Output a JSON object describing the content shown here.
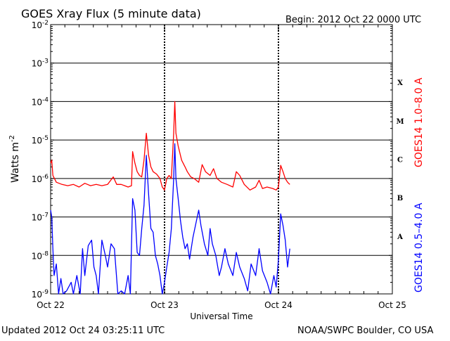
{
  "header": {
    "title": "GOES Xray Flux (5 minute data)",
    "begin": "Begin:  2012 Oct 22 0000 UTC"
  },
  "footer": {
    "updated": "Updated 2012 Oct 24 03:25:11 UTC",
    "credit": "NOAA/SWPC Boulder, CO USA"
  },
  "colors": {
    "long_channel": "#ff0000",
    "short_channel": "#0000ff",
    "axes": "#000000"
  },
  "chart_data": {
    "type": "line",
    "xlabel": "Universal Time",
    "ylabel_base": "Watts m",
    "ylabel_exp": "-2",
    "x_unit": "days since 2012 Oct 22 0000 UTC",
    "xlim": [
      0,
      3
    ],
    "ylim": [
      1e-09,
      0.01
    ],
    "yscale": "log",
    "x_ticks": [
      {
        "x": 0,
        "label": "Oct 22"
      },
      {
        "x": 1,
        "label": "Oct 23"
      },
      {
        "x": 2,
        "label": "Oct 24"
      },
      {
        "x": 3,
        "label": "Oct 25"
      }
    ],
    "y_ticks": [
      {
        "base": "10",
        "exp": "-2",
        "value": 0.01
      },
      {
        "base": "10",
        "exp": "-3",
        "value": 0.001
      },
      {
        "base": "10",
        "exp": "-4",
        "value": 0.0001
      },
      {
        "base": "10",
        "exp": "-5",
        "value": 1e-05
      },
      {
        "base": "10",
        "exp": "-6",
        "value": 1e-06
      },
      {
        "base": "10",
        "exp": "-7",
        "value": 1e-07
      },
      {
        "base": "10",
        "exp": "-8",
        "value": 1e-08
      },
      {
        "base": "10",
        "exp": "-9",
        "value": 1e-09
      }
    ],
    "flare_classes": [
      {
        "label": "X",
        "value": 0.000316
      },
      {
        "label": "M",
        "value": 3.16e-05
      },
      {
        "label": "C",
        "value": 3.16e-06
      },
      {
        "label": "B",
        "value": 3.16e-07
      },
      {
        "label": "A",
        "value": 3.16e-08
      }
    ],
    "series": [
      {
        "name": "GOES14 1.0–8.0 A",
        "color": "#ff0000",
        "points": [
          [
            0.0,
            2.5e-06
          ],
          [
            0.01,
            3e-06
          ],
          [
            0.02,
            1.2e-06
          ],
          [
            0.05,
            8e-07
          ],
          [
            0.1,
            7e-07
          ],
          [
            0.15,
            6.5e-07
          ],
          [
            0.2,
            7e-07
          ],
          [
            0.25,
            6e-07
          ],
          [
            0.3,
            7.5e-07
          ],
          [
            0.35,
            6.5e-07
          ],
          [
            0.4,
            7e-07
          ],
          [
            0.45,
            6.5e-07
          ],
          [
            0.5,
            7e-07
          ],
          [
            0.55,
            1.1e-06
          ],
          [
            0.58,
            7e-07
          ],
          [
            0.62,
            7e-07
          ],
          [
            0.65,
            6.5e-07
          ],
          [
            0.68,
            6e-07
          ],
          [
            0.71,
            6.5e-07
          ],
          [
            0.72,
            5e-06
          ],
          [
            0.74,
            2.5e-06
          ],
          [
            0.76,
            1.5e-06
          ],
          [
            0.78,
            1.2e-06
          ],
          [
            0.8,
            1.1e-06
          ],
          [
            0.82,
            3e-06
          ],
          [
            0.84,
            1.5e-05
          ],
          [
            0.86,
            4e-06
          ],
          [
            0.88,
            2e-06
          ],
          [
            0.9,
            1.5e-06
          ],
          [
            0.93,
            1.3e-06
          ],
          [
            0.96,
            1e-06
          ],
          [
            0.98,
            6e-07
          ],
          [
            1.0,
            5e-07
          ],
          [
            1.02,
            1e-06
          ],
          [
            1.04,
            1.2e-06
          ],
          [
            1.06,
            1e-06
          ],
          [
            1.08,
            1.5e-05
          ],
          [
            1.09,
            0.0001
          ],
          [
            1.1,
            1.5e-05
          ],
          [
            1.12,
            7e-06
          ],
          [
            1.15,
            3e-06
          ],
          [
            1.18,
            2e-06
          ],
          [
            1.2,
            1.5e-06
          ],
          [
            1.23,
            1.1e-06
          ],
          [
            1.26,
            1e-06
          ],
          [
            1.3,
            8e-07
          ],
          [
            1.33,
            2.3e-06
          ],
          [
            1.36,
            1.5e-06
          ],
          [
            1.4,
            1.2e-06
          ],
          [
            1.43,
            1.8e-06
          ],
          [
            1.46,
            1e-06
          ],
          [
            1.5,
            8e-07
          ],
          [
            1.55,
            7e-07
          ],
          [
            1.6,
            6e-07
          ],
          [
            1.63,
            1.5e-06
          ],
          [
            1.66,
            1.2e-06
          ],
          [
            1.7,
            7e-07
          ],
          [
            1.75,
            5e-07
          ],
          [
            1.8,
            6e-07
          ],
          [
            1.83,
            9e-07
          ],
          [
            1.86,
            5.5e-07
          ],
          [
            1.9,
            6e-07
          ],
          [
            1.95,
            5.5e-07
          ],
          [
            1.98,
            5e-07
          ],
          [
            2.0,
            6e-07
          ],
          [
            2.02,
            2.2e-06
          ],
          [
            2.04,
            1.5e-06
          ],
          [
            2.06,
            1e-06
          ],
          [
            2.08,
            8e-07
          ],
          [
            2.1,
            7e-07
          ]
        ]
      },
      {
        "name": "GOES14 0.5–4.0 A",
        "color": "#0000ff",
        "points": [
          [
            0.0,
            1.5e-07
          ],
          [
            0.01,
            1e-07
          ],
          [
            0.02,
            1.5e-08
          ],
          [
            0.03,
            3e-09
          ],
          [
            0.05,
            6e-09
          ],
          [
            0.07,
            1e-09
          ],
          [
            0.09,
            2.5e-09
          ],
          [
            0.11,
            1e-09
          ],
          [
            0.14,
            1.2e-09
          ],
          [
            0.18,
            2e-09
          ],
          [
            0.2,
            1e-09
          ],
          [
            0.23,
            3e-09
          ],
          [
            0.26,
            1e-09
          ],
          [
            0.28,
            1.5e-08
          ],
          [
            0.3,
            3e-09
          ],
          [
            0.33,
            1.8e-08
          ],
          [
            0.36,
            2.5e-08
          ],
          [
            0.38,
            5e-09
          ],
          [
            0.4,
            3e-09
          ],
          [
            0.42,
            1e-09
          ],
          [
            0.45,
            2.5e-08
          ],
          [
            0.48,
            1e-08
          ],
          [
            0.5,
            5e-09
          ],
          [
            0.53,
            2e-08
          ],
          [
            0.56,
            1.5e-08
          ],
          [
            0.59,
            1e-09
          ],
          [
            0.62,
            1.2e-09
          ],
          [
            0.65,
            1e-09
          ],
          [
            0.68,
            3e-09
          ],
          [
            0.7,
            1e-09
          ],
          [
            0.72,
            3e-07
          ],
          [
            0.74,
            1.5e-07
          ],
          [
            0.76,
            1.2e-08
          ],
          [
            0.78,
            1e-08
          ],
          [
            0.8,
            5e-08
          ],
          [
            0.82,
            2e-07
          ],
          [
            0.84,
            4e-06
          ],
          [
            0.86,
            4e-07
          ],
          [
            0.88,
            5e-08
          ],
          [
            0.9,
            4e-08
          ],
          [
            0.92,
            1e-08
          ],
          [
            0.94,
            6e-09
          ],
          [
            0.96,
            3e-09
          ],
          [
            0.98,
            1e-09
          ],
          [
            1.0,
            2e-09
          ],
          [
            1.02,
            5e-09
          ],
          [
            1.04,
            1.2e-08
          ],
          [
            1.06,
            5e-08
          ],
          [
            1.08,
            1e-06
          ],
          [
            1.09,
            8e-06
          ],
          [
            1.1,
            1e-06
          ],
          [
            1.12,
            3e-07
          ],
          [
            1.14,
            8e-08
          ],
          [
            1.16,
            3e-08
          ],
          [
            1.18,
            1.5e-08
          ],
          [
            1.2,
            2e-08
          ],
          [
            1.22,
            8e-09
          ],
          [
            1.25,
            3e-08
          ],
          [
            1.28,
            8e-08
          ],
          [
            1.3,
            1.5e-07
          ],
          [
            1.32,
            6e-08
          ],
          [
            1.35,
            2e-08
          ],
          [
            1.38,
            1e-08
          ],
          [
            1.4,
            5e-08
          ],
          [
            1.42,
            2e-08
          ],
          [
            1.45,
            1e-08
          ],
          [
            1.48,
            3e-09
          ],
          [
            1.5,
            5e-09
          ],
          [
            1.53,
            1.5e-08
          ],
          [
            1.56,
            6e-09
          ],
          [
            1.6,
            3e-09
          ],
          [
            1.63,
            1.2e-08
          ],
          [
            1.66,
            5e-09
          ],
          [
            1.7,
            2.5e-09
          ],
          [
            1.73,
            1.2e-09
          ],
          [
            1.76,
            6e-09
          ],
          [
            1.8,
            3e-09
          ],
          [
            1.83,
            1.5e-08
          ],
          [
            1.86,
            4e-09
          ],
          [
            1.9,
            2e-09
          ],
          [
            1.93,
            1e-09
          ],
          [
            1.96,
            3e-09
          ],
          [
            1.98,
            1.5e-09
          ],
          [
            2.0,
            8e-09
          ],
          [
            2.02,
            1.2e-07
          ],
          [
            2.04,
            6e-08
          ],
          [
            2.06,
            2.5e-08
          ],
          [
            2.08,
            5e-09
          ],
          [
            2.1,
            1.5e-08
          ]
        ]
      }
    ]
  }
}
